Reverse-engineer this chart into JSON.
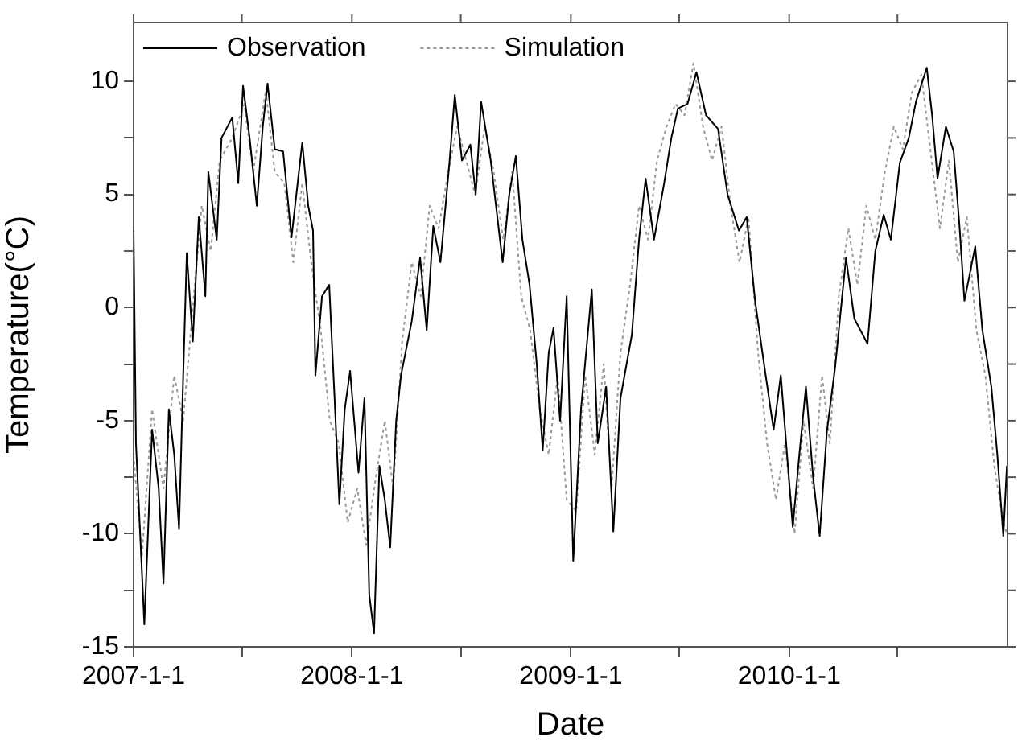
{
  "chart_data": {
    "type": "line",
    "xlabel": "Date",
    "ylabel": "Temperature(°C)",
    "legend": "top left",
    "grid": false,
    "marker": "none",
    "xlim": [
      "2007-01-01",
      "2011-01-01"
    ],
    "xticks": [
      {
        "value": "2007-01-01",
        "label": "2007-1-1"
      },
      {
        "value": "2007-07-01",
        "label": null
      },
      {
        "value": "2008-01-01",
        "label": "2008-1-1"
      },
      {
        "value": "2008-07-01",
        "label": null
      },
      {
        "value": "2009-01-01",
        "label": "2009-1-1"
      },
      {
        "value": "2009-07-01",
        "label": null
      },
      {
        "value": "2010-01-01",
        "label": "2010-1-1"
      },
      {
        "value": "2010-07-01",
        "label": null
      }
    ],
    "ylim": [
      -15,
      12.6
    ],
    "yticks": [
      -15,
      {
        "value": -12.5,
        "label": null
      },
      -10,
      {
        "value": -7.5,
        "label": null
      },
      -5,
      {
        "value": -2.5,
        "label": null
      },
      0,
      {
        "value": 2.5,
        "label": null
      },
      5,
      {
        "value": 7.5,
        "label": null
      },
      10
    ],
    "series": [
      {
        "name": "Observation",
        "color": "#000000",
        "line_style": "solid",
        "x": [
          "2007-01-01",
          "2007-01-05",
          "2007-01-19",
          "2007-02-01",
          "2007-02-12",
          "2007-02-20",
          "2007-03-01",
          "2007-03-10",
          "2007-03-18",
          "2007-03-25",
          "2007-03-31",
          "2007-04-10",
          "2007-04-20",
          "2007-05-01",
          "2007-05-06",
          "2007-05-20",
          "2007-05-28",
          "2007-06-15",
          "2007-06-25",
          "2007-07-03",
          "2007-07-14",
          "2007-07-26",
          "2007-08-05",
          "2007-08-13",
          "2007-08-25",
          "2007-09-08",
          "2007-09-22",
          "2007-10-10",
          "2007-10-20",
          "2007-10-28",
          "2007-11-01",
          "2007-11-12",
          "2007-11-24",
          "2007-12-03",
          "2007-12-11",
          "2007-12-20",
          "2007-12-29",
          "2008-01-12",
          "2008-01-22",
          "2008-01-30",
          "2008-02-07",
          "2008-02-16",
          "2008-02-25",
          "2008-03-05",
          "2008-03-15",
          "2008-03-23",
          "2008-04-10",
          "2008-04-24",
          "2008-05-05",
          "2008-05-16",
          "2008-05-28",
          "2008-06-12",
          "2008-06-21",
          "2008-07-03",
          "2008-07-17",
          "2008-07-26",
          "2008-08-04",
          "2008-08-20",
          "2008-09-09",
          "2008-09-20",
          "2008-10-01",
          "2008-10-12",
          "2008-10-24",
          "2008-11-05",
          "2008-11-15",
          "2008-11-25",
          "2008-12-03",
          "2008-12-14",
          "2008-12-25",
          "2009-01-05",
          "2009-01-18",
          "2009-02-05",
          "2009-02-15",
          "2009-03-01",
          "2009-03-13",
          "2009-03-25",
          "2009-04-13",
          "2009-04-25",
          "2009-05-06",
          "2009-05-20",
          "2009-06-06",
          "2009-06-18",
          "2009-06-29",
          "2009-07-15",
          "2009-07-30",
          "2009-08-15",
          "2009-09-04",
          "2009-09-20",
          "2009-10-09",
          "2009-10-22",
          "2009-11-05",
          "2009-11-20",
          "2009-12-06",
          "2009-12-18",
          "2010-01-07",
          "2010-01-18",
          "2010-01-29",
          "2010-02-10",
          "2010-02-21",
          "2010-03-05",
          "2010-03-19",
          "2010-04-06",
          "2010-04-20",
          "2010-05-12",
          "2010-05-25",
          "2010-06-08",
          "2010-06-20",
          "2010-07-05",
          "2010-07-20",
          "2010-08-01",
          "2010-08-19",
          "2010-08-28",
          "2010-09-06",
          "2010-09-20",
          "2010-10-03",
          "2010-10-13",
          "2010-10-21",
          "2010-11-08",
          "2010-11-20",
          "2010-12-05",
          "2010-12-15",
          "2010-12-25",
          "2010-12-31"
        ],
        "values": [
          3.4,
          -6.0,
          -14.0,
          -5.4,
          -8.0,
          -12.2,
          -4.5,
          -6.5,
          -9.8,
          -3.0,
          2.4,
          -1.5,
          4.0,
          0.5,
          6.0,
          3.0,
          7.5,
          8.4,
          5.5,
          9.8,
          7.5,
          4.5,
          8.0,
          9.9,
          7.0,
          6.9,
          3.1,
          7.3,
          4.5,
          3.4,
          -3.0,
          0.5,
          1.0,
          -4.0,
          -8.7,
          -4.5,
          -2.8,
          -7.3,
          -4.0,
          -12.7,
          -14.4,
          -7.0,
          -8.5,
          -10.6,
          -5.0,
          -3.0,
          -0.6,
          2.2,
          -1.0,
          3.6,
          2.0,
          6.4,
          9.4,
          6.5,
          7.2,
          5.0,
          9.1,
          6.5,
          2.0,
          5.0,
          6.7,
          3.0,
          1.0,
          -2.5,
          -6.3,
          -2.0,
          -0.9,
          -5.0,
          0.5,
          -11.2,
          -4.5,
          0.8,
          -6.0,
          -3.5,
          -9.9,
          -4.0,
          -1.2,
          3.0,
          5.7,
          3.0,
          5.5,
          7.5,
          8.8,
          9.0,
          10.4,
          8.5,
          7.9,
          5.0,
          3.4,
          4.0,
          0.3,
          -2.5,
          -5.4,
          -3.0,
          -9.7,
          -6.5,
          -3.5,
          -7.5,
          -10.1,
          -5.5,
          -2.6,
          2.2,
          -0.5,
          -1.6,
          2.5,
          4.1,
          3.0,
          6.4,
          7.5,
          9.1,
          10.6,
          8.5,
          5.7,
          8.0,
          6.9,
          3.5,
          0.3,
          2.7,
          -1.0,
          -3.5,
          -6.5,
          -10.1,
          -7.0
        ]
      },
      {
        "name": "Simulation",
        "color": "#999999",
        "line_style": "dotted",
        "x": [
          "2007-01-01",
          "2007-01-15",
          "2007-02-01",
          "2007-02-20",
          "2007-03-10",
          "2007-03-25",
          "2007-04-10",
          "2007-04-25",
          "2007-05-10",
          "2007-05-25",
          "2007-06-15",
          "2007-07-05",
          "2007-07-20",
          "2007-08-10",
          "2007-08-25",
          "2007-09-10",
          "2007-09-25",
          "2007-10-10",
          "2007-10-25",
          "2007-11-10",
          "2007-11-25",
          "2007-12-10",
          "2007-12-25",
          "2008-01-10",
          "2008-01-25",
          "2008-02-10",
          "2008-02-25",
          "2008-03-10",
          "2008-03-25",
          "2008-04-10",
          "2008-04-25",
          "2008-05-10",
          "2008-05-25",
          "2008-06-10",
          "2008-06-25",
          "2008-07-10",
          "2008-07-25",
          "2008-08-10",
          "2008-08-25",
          "2008-09-10",
          "2008-09-25",
          "2008-10-10",
          "2008-10-25",
          "2008-11-10",
          "2008-11-25",
          "2008-12-10",
          "2008-12-25",
          "2009-01-10",
          "2009-01-25",
          "2009-02-10",
          "2009-02-25",
          "2009-03-10",
          "2009-03-25",
          "2009-04-10",
          "2009-04-25",
          "2009-05-10",
          "2009-05-25",
          "2009-06-10",
          "2009-06-25",
          "2009-07-10",
          "2009-07-25",
          "2009-08-10",
          "2009-08-25",
          "2009-09-10",
          "2009-09-25",
          "2009-10-10",
          "2009-10-25",
          "2009-11-10",
          "2009-11-25",
          "2009-12-10",
          "2009-12-25",
          "2010-01-10",
          "2010-01-25",
          "2010-02-10",
          "2010-02-25",
          "2010-03-10",
          "2010-03-25",
          "2010-04-10",
          "2010-04-25",
          "2010-05-10",
          "2010-05-25",
          "2010-06-10",
          "2010-06-25",
          "2010-07-10",
          "2010-07-25",
          "2010-08-10",
          "2010-08-25",
          "2010-09-10",
          "2010-09-25",
          "2010-10-10",
          "2010-10-25",
          "2010-11-10",
          "2010-11-25",
          "2010-12-10",
          "2010-12-25",
          "2010-12-31"
        ],
        "values": [
          -6.5,
          -11.0,
          -4.5,
          -8.0,
          -3.0,
          -5.0,
          0.0,
          4.5,
          2.5,
          6.5,
          7.5,
          9.0,
          6.0,
          9.6,
          6.0,
          5.5,
          2.0,
          5.5,
          2.0,
          -1.0,
          -5.0,
          -6.0,
          -9.5,
          -8.0,
          -10.5,
          -7.5,
          -5.0,
          -8.0,
          -1.5,
          2.0,
          0.5,
          4.5,
          3.5,
          6.0,
          8.0,
          6.5,
          5.0,
          8.0,
          6.0,
          3.0,
          6.0,
          0.5,
          -1.0,
          -4.5,
          -6.5,
          -3.0,
          -8.5,
          -9.0,
          -3.0,
          -6.5,
          -2.5,
          -8.0,
          -2.0,
          1.0,
          4.5,
          3.0,
          6.5,
          8.0,
          9.0,
          8.5,
          10.8,
          8.0,
          6.5,
          8.0,
          4.5,
          2.0,
          4.0,
          -2.0,
          -6.0,
          -8.5,
          -6.0,
          -10.0,
          -5.0,
          -8.0,
          -3.0,
          -6.0,
          0.5,
          3.5,
          1.0,
          4.5,
          3.0,
          6.0,
          8.0,
          7.0,
          9.5,
          10.3,
          7.0,
          3.5,
          6.5,
          2.0,
          4.0,
          -1.0,
          -3.0,
          -7.0,
          -9.5,
          -10.0
        ]
      }
    ]
  }
}
